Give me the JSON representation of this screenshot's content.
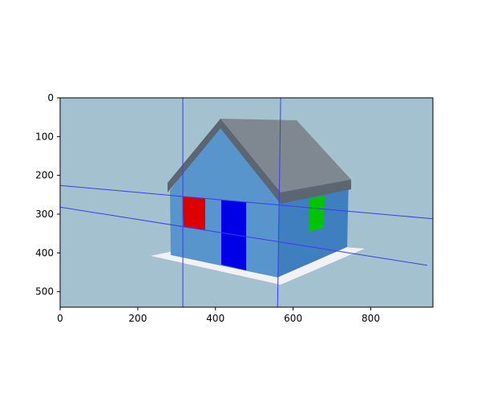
{
  "chart_data": {
    "type": "image",
    "title": "",
    "xlabel": "",
    "ylabel": "",
    "xlim": [
      0,
      960
    ],
    "ylim": [
      540,
      0
    ],
    "x_ticks": [
      0,
      200,
      400,
      600,
      800
    ],
    "y_ticks": [
      0,
      100,
      200,
      300,
      400,
      500
    ],
    "grid": false,
    "image": {
      "background_color": "#a3c1ce",
      "scene": "house",
      "colors": {
        "wall_front": "#5795cc",
        "wall_side": "#3f7fbf",
        "roof_top": "#7f8790",
        "roof_edge": "#5c6670",
        "window_left": "#dd0000",
        "door": "#0000e6",
        "window_right": "#00c400",
        "ground_plane": "#f2f2f4"
      }
    },
    "overlay_lines": {
      "color": "#3b3bf5",
      "lines": [
        {
          "x": [
            316,
            316
          ],
          "y": [
            0,
            540
          ]
        },
        {
          "x": [
            568,
            560
          ],
          "y": [
            0,
            540
          ]
        },
        {
          "x": [
            0,
            960
          ],
          "y": [
            226,
            312
          ]
        },
        {
          "x": [
            0,
            945
          ],
          "y": [
            282,
            432
          ]
        }
      ]
    }
  }
}
